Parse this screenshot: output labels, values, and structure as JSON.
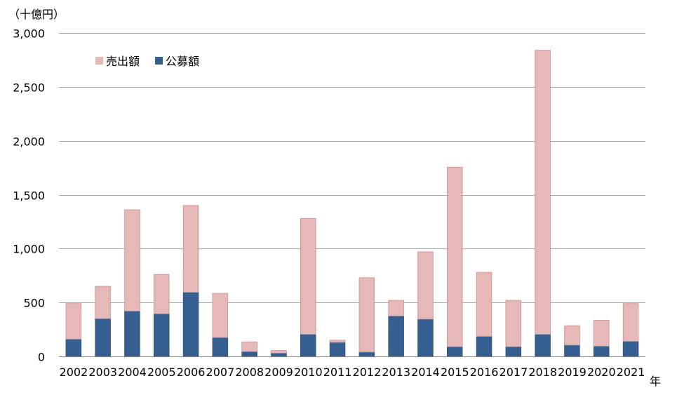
{
  "chart_data": {
    "type": "bar",
    "stacked": true,
    "unit_label": "（十億円）",
    "xlabel": "年",
    "categories": [
      "2002",
      "2003",
      "2004",
      "2005",
      "2006",
      "2007",
      "2008",
      "2009",
      "2010",
      "2011",
      "2012",
      "2013",
      "2014",
      "2015",
      "2016",
      "2017",
      "2018",
      "2019",
      "2020",
      "2021"
    ],
    "series": [
      {
        "name": "公募額",
        "color": "#365f91",
        "values": [
          160,
          350,
          420,
          395,
          595,
          175,
          45,
          30,
          205,
          130,
          40,
          375,
          345,
          90,
          185,
          90,
          205,
          105,
          95,
          140
        ]
      },
      {
        "name": "売出額",
        "color": "#e6b8b7",
        "values": [
          330,
          300,
          940,
          365,
          805,
          410,
          90,
          25,
          1075,
          20,
          690,
          145,
          625,
          1665,
          595,
          430,
          2635,
          180,
          240,
          350
        ]
      }
    ],
    "legend_order": [
      "売出額",
      "公募額"
    ],
    "legend_position": "top-left",
    "ylim": [
      0,
      3000
    ],
    "yticks": [
      0,
      500,
      1000,
      1500,
      2000,
      2500,
      3000
    ],
    "ytick_labels": [
      "0",
      "500",
      "1,000",
      "1,500",
      "2,000",
      "2,500",
      "3,000"
    ],
    "grid": true
  }
}
